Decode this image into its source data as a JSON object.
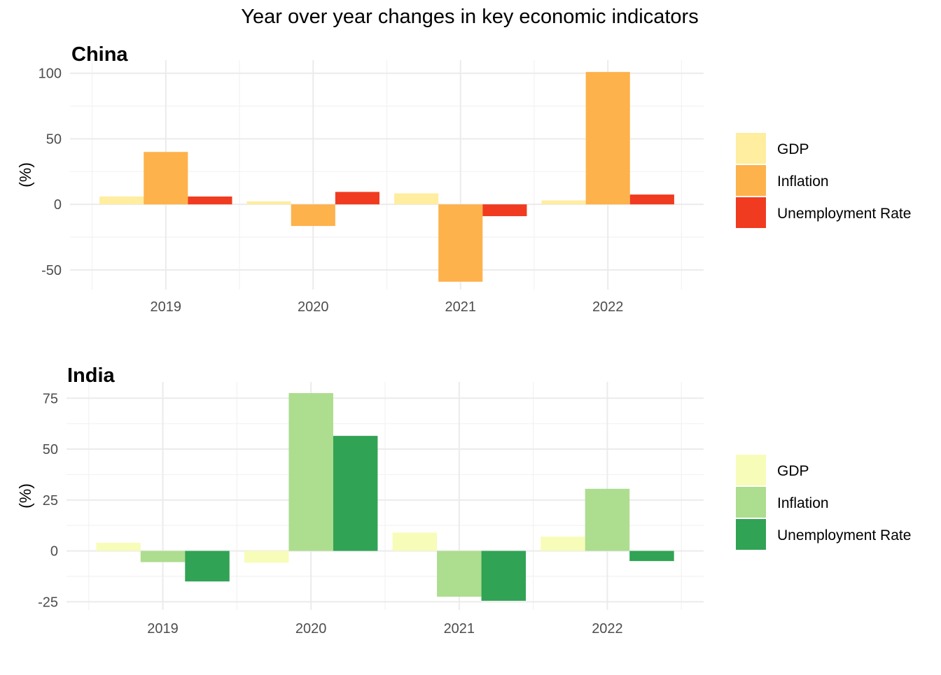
{
  "title": "Year over year changes in key economic indicators",
  "chart_data": [
    {
      "type": "bar",
      "title": "China",
      "ylabel": "(%)",
      "xlabel": "",
      "categories": [
        "2019",
        "2020",
        "2021",
        "2022"
      ],
      "ylim": [
        -65,
        110
      ],
      "yticks": [
        -50,
        0,
        50,
        100
      ],
      "grid": true,
      "legend_position": "right",
      "series": [
        {
          "name": "GDP",
          "color": "#FFEDA0",
          "values": [
            6,
            2.3,
            8.4,
            3
          ]
        },
        {
          "name": "Inflation",
          "color": "#FEB24C",
          "values": [
            40,
            -16.5,
            -59,
            101
          ]
        },
        {
          "name": "Unemployment Rate",
          "color": "#F03B20",
          "values": [
            6,
            9.5,
            -9,
            7.5
          ]
        }
      ]
    },
    {
      "type": "bar",
      "title": "India",
      "ylabel": "(%)",
      "xlabel": "",
      "categories": [
        "2019",
        "2020",
        "2021",
        "2022"
      ],
      "ylim": [
        -29,
        83
      ],
      "yticks": [
        -25,
        0,
        25,
        50,
        75
      ],
      "grid": true,
      "legend_position": "right",
      "series": [
        {
          "name": "GDP",
          "color": "#F7FCB9",
          "values": [
            4,
            -5.8,
            9,
            7
          ]
        },
        {
          "name": "Inflation",
          "color": "#ADDD8E",
          "values": [
            -5.5,
            77.5,
            -22.5,
            30.5
          ]
        },
        {
          "name": "Unemployment Rate",
          "color": "#31A354",
          "values": [
            -15,
            56.5,
            -24.5,
            -5
          ]
        }
      ]
    }
  ]
}
